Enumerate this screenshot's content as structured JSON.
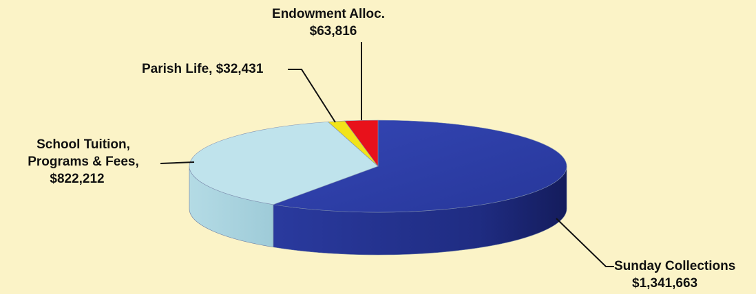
{
  "chart_data": {
    "type": "pie",
    "title": "",
    "slices": [
      {
        "name": "Sunday Collections",
        "value": 1341663,
        "value_label": "$1,341,663",
        "color": "#2e3fa6"
      },
      {
        "name": "School Tuition, Programs & Fees",
        "value": 822212,
        "value_label": "$822,212",
        "color": "#bfe3ec"
      },
      {
        "name": "Parish Life",
        "value": 32431,
        "value_label": "$32,431",
        "color": "#f2e418"
      },
      {
        "name": "Endowment Alloc.",
        "value": 63816,
        "value_label": "$63,816",
        "color": "#e8111b"
      }
    ],
    "labels": {
      "sunday": {
        "line1": "Sunday Collections",
        "line2": "$1,341,663"
      },
      "school": {
        "line1": "School Tuition,",
        "line2": "Programs & Fees,",
        "line3": "$822,212"
      },
      "parish": {
        "line1": "Parish Life,  $32,431"
      },
      "endowment": {
        "line1": "Endowment Alloc.",
        "line2": "$63,816"
      }
    },
    "legend": "none",
    "grid": false
  }
}
